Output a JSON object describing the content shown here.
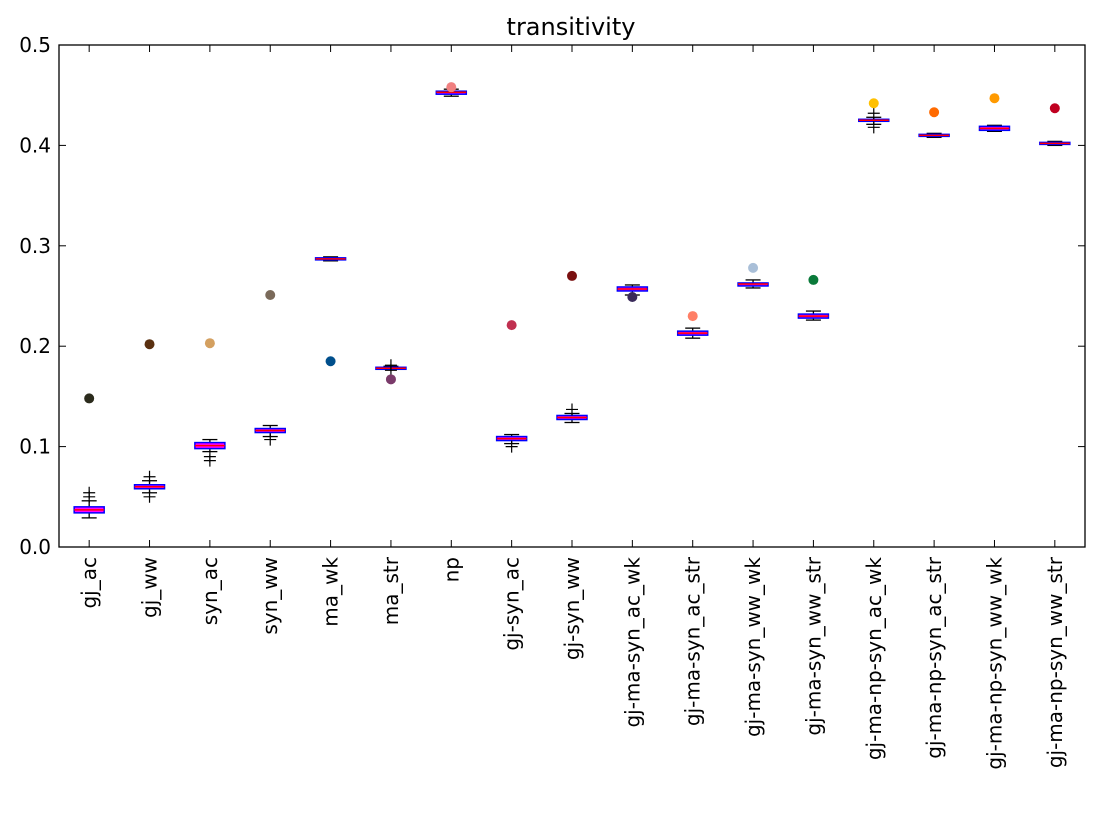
{
  "chart_data": {
    "type": "box",
    "title": "transitivity",
    "xlabel": "",
    "ylabel": "",
    "ylim": [
      0.0,
      0.5
    ],
    "yticks": [
      0.0,
      0.1,
      0.2,
      0.3,
      0.4,
      0.5
    ],
    "ytick_labels": [
      "0.0",
      "0.1",
      "0.2",
      "0.3",
      "0.4",
      "0.5"
    ],
    "grid": false,
    "categories": [
      "gj_ac",
      "gj_ww",
      "syn_ac",
      "syn_ww",
      "ma_wk",
      "ma_str",
      "np",
      "gj-syn_ac",
      "gj-syn_ww",
      "gj-ma-syn_ac_wk",
      "gj-ma-syn_ac_str",
      "gj-ma-syn_ww_wk",
      "gj-ma-syn_ww_str",
      "gj-ma-np-syn_ac_wk",
      "gj-ma-np-syn_ac_str",
      "gj-ma-np-syn_ww_wk",
      "gj-ma-np-syn_ww_str"
    ],
    "boxes": [
      {
        "q1": 0.034,
        "median": 0.037,
        "q3": 0.04,
        "whisker_low": 0.029,
        "whisker_high": 0.046,
        "fliers": [
          0.05,
          0.054
        ]
      },
      {
        "q1": 0.058,
        "median": 0.06,
        "q3": 0.062,
        "whisker_low": 0.054,
        "whisker_high": 0.066,
        "fliers": [
          0.05,
          0.07
        ]
      },
      {
        "q1": 0.098,
        "median": 0.101,
        "q3": 0.104,
        "whisker_low": 0.095,
        "whisker_high": 0.107,
        "fliers": [
          0.09,
          0.086
        ]
      },
      {
        "q1": 0.114,
        "median": 0.116,
        "q3": 0.118,
        "whisker_low": 0.11,
        "whisker_high": 0.121,
        "fliers": [
          0.107
        ]
      },
      {
        "q1": 0.286,
        "median": 0.287,
        "q3": 0.288,
        "whisker_low": 0.285,
        "whisker_high": 0.289,
        "fliers": []
      },
      {
        "q1": 0.178,
        "median": 0.178,
        "q3": 0.179,
        "whisker_low": 0.177,
        "whisker_high": 0.18,
        "fliers": [
          0.176,
          0.181
        ]
      },
      {
        "q1": 0.451,
        "median": 0.453,
        "q3": 0.454,
        "whisker_low": 0.449,
        "whisker_high": 0.456,
        "fliers": []
      },
      {
        "q1": 0.106,
        "median": 0.108,
        "q3": 0.11,
        "whisker_low": 0.103,
        "whisker_high": 0.112,
        "fliers": [
          0.1
        ]
      },
      {
        "q1": 0.127,
        "median": 0.129,
        "q3": 0.131,
        "whisker_low": 0.124,
        "whisker_high": 0.133,
        "fliers": [
          0.137
        ]
      },
      {
        "q1": 0.255,
        "median": 0.257,
        "q3": 0.259,
        "whisker_low": 0.251,
        "whisker_high": 0.261,
        "fliers": []
      },
      {
        "q1": 0.211,
        "median": 0.213,
        "q3": 0.215,
        "whisker_low": 0.208,
        "whisker_high": 0.218,
        "fliers": []
      },
      {
        "q1": 0.26,
        "median": 0.262,
        "q3": 0.263,
        "whisker_low": 0.258,
        "whisker_high": 0.266,
        "fliers": []
      },
      {
        "q1": 0.228,
        "median": 0.23,
        "q3": 0.232,
        "whisker_low": 0.226,
        "whisker_high": 0.235,
        "fliers": []
      },
      {
        "q1": 0.424,
        "median": 0.425,
        "q3": 0.426,
        "whisker_low": 0.421,
        "whisker_high": 0.428,
        "fliers": [
          0.418,
          0.432
        ]
      },
      {
        "q1": 0.409,
        "median": 0.41,
        "q3": 0.411,
        "whisker_low": 0.408,
        "whisker_high": 0.412,
        "fliers": []
      },
      {
        "q1": 0.415,
        "median": 0.417,
        "q3": 0.419,
        "whisker_low": 0.414,
        "whisker_high": 0.42,
        "fliers": []
      },
      {
        "q1": 0.401,
        "median": 0.402,
        "q3": 0.403,
        "whisker_low": 0.4,
        "whisker_high": 0.404,
        "fliers": []
      }
    ],
    "points": [
      {
        "value": 0.148,
        "color": "#2b2b1c"
      },
      {
        "value": 0.202,
        "color": "#5a3010"
      },
      {
        "value": 0.203,
        "color": "#d4a060"
      },
      {
        "value": 0.251,
        "color": "#7a6a5a"
      },
      {
        "value": 0.185,
        "color": "#004f8c"
      },
      {
        "value": 0.167,
        "color": "#7a3a6a"
      },
      {
        "value": 0.458,
        "color": "#f08080"
      },
      {
        "value": 0.221,
        "color": "#c03050"
      },
      {
        "value": 0.27,
        "color": "#7a1010"
      },
      {
        "value": 0.249,
        "color": "#3a2a5a"
      },
      {
        "value": 0.23,
        "color": "#ff7f66"
      },
      {
        "value": 0.278,
        "color": "#a9bfd8"
      },
      {
        "value": 0.266,
        "color": "#0a7a3a"
      },
      {
        "value": 0.442,
        "color": "#ffc000"
      },
      {
        "value": 0.433,
        "color": "#ff6a00"
      },
      {
        "value": 0.447,
        "color": "#ff9a00"
      },
      {
        "value": 0.437,
        "color": "#c00020"
      }
    ],
    "box_edge_color": "#0000ff",
    "box_fill_color": "#ff00ff",
    "median_color": "#ff0000",
    "whisker_color": "#000000"
  }
}
